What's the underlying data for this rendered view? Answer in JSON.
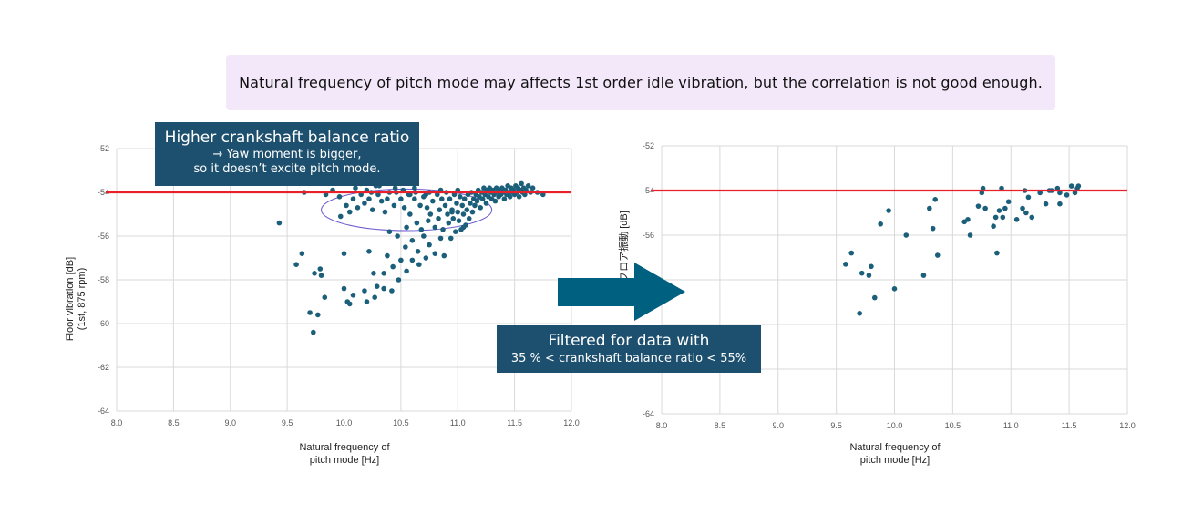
{
  "banner": {
    "text": "Natural frequency of pitch mode may affects 1st order idle vibration, but the correlation is not good enough."
  },
  "callouts": {
    "left": {
      "title": "Higher crankshaft balance ratio",
      "line1": "→ Yaw moment is bigger,",
      "line2": "so it doesn’t excite pitch mode."
    },
    "right": {
      "title": "Filtered for data with",
      "line1": "35 % < crankshaft balance ratio < 55%"
    }
  },
  "colors": {
    "point": "#1c5f7a",
    "threshold": "#e8202a",
    "arrow": "#006080",
    "callout": "#1d4f6e",
    "ellipse": "#6a5acd"
  },
  "chart_data": [
    {
      "type": "scatter",
      "title": "",
      "xlabel": [
        "Natural frequency of",
        "pitch mode [Hz]"
      ],
      "ylabel": [
        "Floor vibration [dB]",
        "(1st, 875 rpm)"
      ],
      "xlim": [
        8.0,
        12.0
      ],
      "ylim": [
        -64,
        -52
      ],
      "xticks": [
        "8.0",
        "8.5",
        "9.0",
        "9.5",
        "10.0",
        "10.5",
        "11.0",
        "11.5",
        "12.0"
      ],
      "yticks": [
        "-52",
        "-54",
        "-56",
        "-58",
        "-60",
        "-62",
        "-64"
      ],
      "grid": true,
      "threshold_y": -54,
      "highlight_ellipse": {
        "cx": 10.55,
        "cy": -54.8,
        "rx": 0.75,
        "ry": 0.95
      },
      "points": [
        [
          9.43,
          -55.4
        ],
        [
          9.58,
          -57.3
        ],
        [
          9.63,
          -56.8
        ],
        [
          9.7,
          -59.5
        ],
        [
          9.73,
          -60.4
        ],
        [
          9.74,
          -57.7
        ],
        [
          9.77,
          -59.6
        ],
        [
          9.79,
          -57.5
        ],
        [
          9.8,
          -57.8
        ],
        [
          9.83,
          -58.8
        ],
        [
          9.65,
          -54.0
        ],
        [
          9.84,
          -54.1
        ],
        [
          9.9,
          -53.9
        ],
        [
          9.96,
          -54.2
        ],
        [
          9.97,
          -55.1
        ],
        [
          10.0,
          -56.8
        ],
        [
          10.0,
          -58.4
        ],
        [
          10.03,
          -59.0
        ],
        [
          10.05,
          -59.1
        ],
        [
          10.08,
          -58.7
        ],
        [
          10.02,
          -54.6
        ],
        [
          10.05,
          -54.9
        ],
        [
          10.08,
          -54.3
        ],
        [
          10.1,
          -53.8
        ],
        [
          10.12,
          -54.7
        ],
        [
          10.15,
          -54.1
        ],
        [
          10.18,
          -54.5
        ],
        [
          10.2,
          -53.9
        ],
        [
          10.22,
          -54.3
        ],
        [
          10.18,
          -58.5
        ],
        [
          10.2,
          -59.0
        ],
        [
          10.22,
          -56.7
        ],
        [
          10.24,
          -54.0
        ],
        [
          10.25,
          -54.8
        ],
        [
          10.26,
          -57.7
        ],
        [
          10.27,
          -58.8
        ],
        [
          10.29,
          -58.3
        ],
        [
          10.3,
          -54.1
        ],
        [
          10.31,
          -53.7
        ],
        [
          10.33,
          -54.4
        ],
        [
          10.35,
          -58.4
        ],
        [
          10.35,
          -57.7
        ],
        [
          10.36,
          -54.9
        ],
        [
          10.38,
          -56.9
        ],
        [
          10.38,
          -54.3
        ],
        [
          10.4,
          -54.0
        ],
        [
          10.4,
          -55.8
        ],
        [
          10.42,
          -58.5
        ],
        [
          10.43,
          -57.4
        ],
        [
          10.44,
          -54.6
        ],
        [
          10.46,
          -54.0
        ],
        [
          10.47,
          -56.0
        ],
        [
          10.48,
          -58.0
        ],
        [
          10.5,
          -54.3
        ],
        [
          10.5,
          -57.1
        ],
        [
          10.52,
          -53.9
        ],
        [
          10.53,
          -54.7
        ],
        [
          10.54,
          -56.5
        ],
        [
          10.55,
          -57.6
        ],
        [
          10.55,
          -55.6
        ],
        [
          10.57,
          -54.1
        ],
        [
          10.58,
          -55.0
        ],
        [
          10.6,
          -56.2
        ],
        [
          10.6,
          -57.1
        ],
        [
          10.62,
          -54.3
        ],
        [
          10.63,
          -54.0
        ],
        [
          10.64,
          -55.4
        ],
        [
          10.65,
          -56.7
        ],
        [
          10.66,
          -57.3
        ],
        [
          10.67,
          -54.6
        ],
        [
          10.68,
          -55.7
        ],
        [
          10.7,
          -54.2
        ],
        [
          10.7,
          -56.0
        ],
        [
          10.72,
          -57.0
        ],
        [
          10.73,
          -54.7
        ],
        [
          10.74,
          -55.3
        ],
        [
          10.75,
          -54.0
        ],
        [
          10.75,
          -56.4
        ],
        [
          10.76,
          -55.0
        ],
        [
          10.78,
          -54.4
        ],
        [
          10.8,
          -55.6
        ],
        [
          10.8,
          -56.8
        ],
        [
          10.82,
          -54.1
        ],
        [
          10.83,
          -55.2
        ],
        [
          10.84,
          -54.8
        ],
        [
          10.85,
          -56.1
        ],
        [
          10.86,
          -54.3
        ],
        [
          10.87,
          -55.7
        ],
        [
          10.88,
          -56.9
        ],
        [
          10.89,
          -54.6
        ],
        [
          10.9,
          -54.0
        ],
        [
          10.91,
          -55.0
        ],
        [
          10.92,
          -55.4
        ],
        [
          10.93,
          -54.3
        ],
        [
          10.94,
          -56.1
        ],
        [
          10.95,
          -54.8
        ],
        [
          10.96,
          -55.2
        ],
        [
          10.97,
          -54.1
        ],
        [
          10.98,
          -55.8
        ],
        [
          10.99,
          -54.5
        ],
        [
          11.0,
          -54.9
        ],
        [
          11.01,
          -55.3
        ],
        [
          11.02,
          -54.2
        ],
        [
          11.03,
          -55.7
        ],
        [
          11.04,
          -54.6
        ],
        [
          11.05,
          -55.0
        ],
        [
          11.06,
          -54.3
        ],
        [
          11.07,
          -55.5
        ],
        [
          11.08,
          -54.8
        ],
        [
          11.09,
          -54.1
        ],
        [
          11.1,
          -55.2
        ],
        [
          11.11,
          -54.5
        ],
        [
          11.12,
          -54.0
        ],
        [
          11.13,
          -54.9
        ],
        [
          11.14,
          -54.3
        ],
        [
          11.15,
          -54.6
        ],
        [
          11.16,
          -54.1
        ],
        [
          11.17,
          -54.4
        ],
        [
          11.18,
          -53.9
        ],
        [
          11.19,
          -54.2
        ],
        [
          11.2,
          -54.7
        ],
        [
          11.21,
          -54.0
        ],
        [
          11.22,
          -54.3
        ],
        [
          11.23,
          -53.8
        ],
        [
          11.24,
          -54.1
        ],
        [
          11.25,
          -54.5
        ],
        [
          11.26,
          -53.9
        ],
        [
          11.27,
          -54.2
        ],
        [
          11.28,
          -53.8
        ],
        [
          11.29,
          -54.0
        ],
        [
          11.3,
          -54.3
        ],
        [
          11.31,
          -53.9
        ],
        [
          11.32,
          -54.1
        ],
        [
          11.33,
          -54.4
        ],
        [
          11.34,
          -53.8
        ],
        [
          11.35,
          -54.0
        ],
        [
          11.36,
          -54.2
        ],
        [
          11.37,
          -53.9
        ],
        [
          11.38,
          -54.1
        ],
        [
          11.39,
          -53.8
        ],
        [
          11.4,
          -54.0
        ],
        [
          11.41,
          -54.3
        ],
        [
          11.42,
          -53.9
        ],
        [
          11.43,
          -54.1
        ],
        [
          11.44,
          -53.7
        ],
        [
          11.45,
          -54.0
        ],
        [
          11.46,
          -54.2
        ],
        [
          11.47,
          -53.8
        ],
        [
          11.48,
          -54.0
        ],
        [
          11.49,
          -53.9
        ],
        [
          11.5,
          -54.1
        ],
        [
          11.51,
          -53.7
        ],
        [
          11.52,
          -54.0
        ],
        [
          11.53,
          -53.8
        ],
        [
          11.54,
          -54.2
        ],
        [
          11.55,
          -53.9
        ],
        [
          11.56,
          -53.6
        ],
        [
          11.57,
          -54.0
        ],
        [
          11.58,
          -53.8
        ],
        [
          11.59,
          -54.1
        ],
        [
          11.6,
          -53.9
        ],
        [
          11.62,
          -53.7
        ],
        [
          11.64,
          -54.0
        ],
        [
          11.66,
          -53.8
        ],
        [
          11.7,
          -54.0
        ],
        [
          11.75,
          -54.1
        ],
        [
          10.15,
          -53.6
        ],
        [
          10.28,
          -53.7
        ],
        [
          10.45,
          -53.8
        ],
        [
          10.62,
          -53.8
        ],
        [
          10.85,
          -53.9
        ],
        [
          11.0,
          -53.9
        ],
        [
          10.95,
          -54.9
        ],
        [
          11.05,
          -55.6
        ],
        [
          10.72,
          -54.1
        ],
        [
          10.58,
          -54.1
        ]
      ]
    },
    {
      "type": "scatter",
      "title": "",
      "xlabel": [
        "Natural frequency of",
        "pitch mode [Hz]"
      ],
      "ylabel_fragment": [
        "フロア振動 [dB]"
      ],
      "xlim": [
        8.0,
        12.0
      ],
      "ylim": [
        -64,
        -52
      ],
      "xticks": [
        "8.0",
        "8.5",
        "9.0",
        "9.5",
        "10.0",
        "10.5",
        "11.0",
        "11.5",
        "12.0"
      ],
      "yticks": [
        "-52",
        "-54",
        "-56",
        "",
        "",
        "",
        "-64"
      ],
      "grid": true,
      "threshold_y": -54,
      "points": [
        [
          9.58,
          -57.3
        ],
        [
          9.63,
          -56.8
        ],
        [
          9.7,
          -59.5
        ],
        [
          9.72,
          -57.7
        ],
        [
          9.78,
          -57.8
        ],
        [
          9.8,
          -57.4
        ],
        [
          9.83,
          -58.8
        ],
        [
          9.88,
          -55.5
        ],
        [
          9.95,
          -54.9
        ],
        [
          10.0,
          -58.4
        ],
        [
          10.1,
          -56.0
        ],
        [
          10.25,
          -57.8
        ],
        [
          10.3,
          -54.8
        ],
        [
          10.33,
          -55.7
        ],
        [
          10.35,
          -54.4
        ],
        [
          10.37,
          -56.9
        ],
        [
          10.6,
          -55.4
        ],
        [
          10.63,
          -55.3
        ],
        [
          10.65,
          -56.0
        ],
        [
          10.72,
          -54.7
        ],
        [
          10.75,
          -54.1
        ],
        [
          10.76,
          -53.9
        ],
        [
          10.78,
          -54.8
        ],
        [
          10.85,
          -55.6
        ],
        [
          10.88,
          -56.8
        ],
        [
          10.87,
          -55.2
        ],
        [
          10.9,
          -54.9
        ],
        [
          10.92,
          -53.9
        ],
        [
          10.93,
          -55.2
        ],
        [
          10.95,
          -54.8
        ],
        [
          10.98,
          -54.5
        ],
        [
          11.05,
          -55.3
        ],
        [
          11.1,
          -54.8
        ],
        [
          11.12,
          -54.0
        ],
        [
          11.13,
          -55.0
        ],
        [
          11.15,
          -54.3
        ],
        [
          11.18,
          -55.2
        ],
        [
          11.25,
          -54.1
        ],
        [
          11.3,
          -54.6
        ],
        [
          11.33,
          -54.0
        ],
        [
          11.35,
          -54.0
        ],
        [
          11.4,
          -53.9
        ],
        [
          11.42,
          -54.1
        ],
        [
          11.42,
          -54.6
        ],
        [
          11.48,
          -54.2
        ],
        [
          11.52,
          -53.8
        ],
        [
          11.55,
          -54.1
        ],
        [
          11.57,
          -53.9
        ],
        [
          11.58,
          -53.8
        ]
      ]
    }
  ]
}
